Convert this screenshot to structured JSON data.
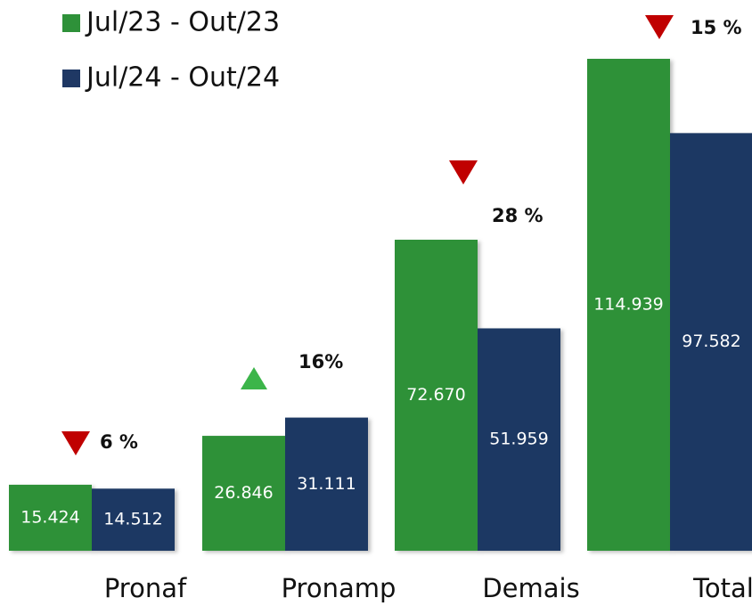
{
  "chart_data": {
    "type": "bar",
    "categories": [
      "Pronaf",
      "Pronamp",
      "Demais",
      "Total"
    ],
    "series": [
      {
        "name": "Jul/23 - Out/23",
        "color": "#2e9139",
        "values": [
          15424,
          26846,
          72670,
          114939
        ],
        "value_labels": [
          "15.424",
          "26.846",
          "72.670",
          "114.939"
        ]
      },
      {
        "name": "Jul/24 - Out/24",
        "color": "#1f3864",
        "values": [
          14512,
          31111,
          51959,
          97582
        ],
        "value_labels": [
          "14.512",
          "31.111",
          "51.959",
          "97.582"
        ]
      }
    ],
    "change_labels": [
      "6 %",
      "16%",
      "28 %",
      "15 %"
    ],
    "change_directions": [
      "down",
      "up",
      "down",
      "down"
    ],
    "change_colors": {
      "down": "#c00000",
      "up": "#3cb54a"
    }
  }
}
